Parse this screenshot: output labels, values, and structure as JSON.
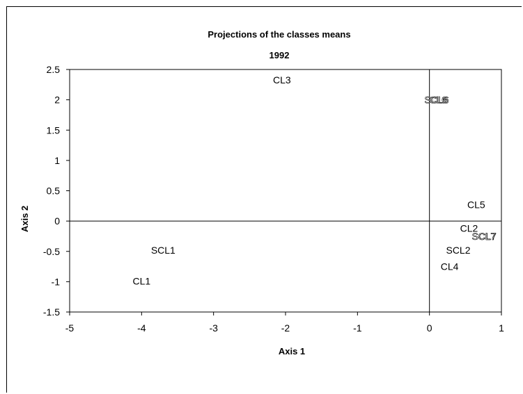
{
  "chart_data": {
    "type": "scatter",
    "title": "Projections of the classes means",
    "subtitle": "1992",
    "xlabel": "Axis 1",
    "ylabel": "Axis 2",
    "xlim": [
      -5,
      1
    ],
    "ylim": [
      -1.5,
      2.5
    ],
    "xticks": [
      "-5",
      "-4",
      "-3",
      "-2",
      "-1",
      "0",
      "1"
    ],
    "yticks": [
      "2.5",
      "2",
      "1.5",
      "1",
      "0.5",
      "0",
      "-0.5",
      "-1",
      "-1.5"
    ],
    "grid": false,
    "reference_lines": {
      "x": 0,
      "y": 0
    },
    "points": [
      {
        "label": "CL3",
        "x": -2.05,
        "y": 2.33
      },
      {
        "label": "SCL6",
        "x": 0.1,
        "y": 2.0
      },
      {
        "label": "CL6",
        "x": 0.12,
        "y": 2.0
      },
      {
        "label": "CL5",
        "x": 0.65,
        "y": 0.27
      },
      {
        "label": "CL2",
        "x": 0.55,
        "y": -0.12
      },
      {
        "label": "SCL7",
        "x": 0.76,
        "y": -0.25
      },
      {
        "label": "CL7",
        "x": 0.8,
        "y": -0.25
      },
      {
        "label": "SCL2",
        "x": 0.4,
        "y": -0.48
      },
      {
        "label": "CL4",
        "x": 0.28,
        "y": -0.75
      },
      {
        "label": "SCL1",
        "x": -3.7,
        "y": -0.48
      },
      {
        "label": "CL1",
        "x": -4.0,
        "y": -0.99
      }
    ]
  }
}
